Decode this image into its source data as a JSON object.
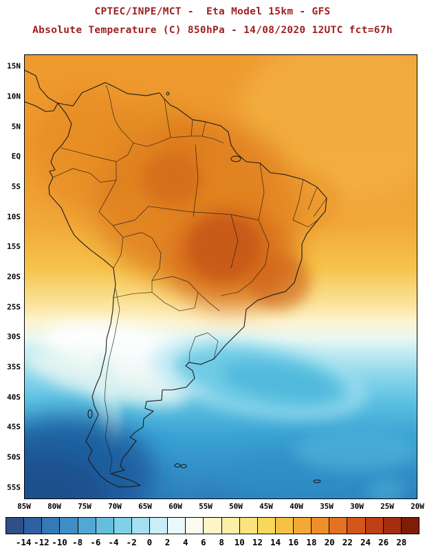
{
  "header": {
    "line1": "CPTEC/INPE/MCT -  Eta Model 15km - GFS",
    "line2": "Absolute Temperature (C) 850hPa - 14/08/2020 12UTC fct=67h",
    "title_color": "#a02020"
  },
  "map": {
    "lat_labels": [
      "15N",
      "10N",
      "5N",
      "EQ",
      "5S",
      "10S",
      "15S",
      "20S",
      "25S",
      "30S",
      "35S",
      "40S",
      "45S",
      "50S",
      "55S"
    ],
    "lon_labels": [
      "85W",
      "80W",
      "75W",
      "70W",
      "65W",
      "60W",
      "55W",
      "50W",
      "45W",
      "40W",
      "35W",
      "30W",
      "25W",
      "20W"
    ]
  },
  "colorbar": {
    "tick_labels": [
      "-14",
      "-12",
      "-10",
      "-8",
      "-6",
      "-4",
      "-2",
      "0",
      "2",
      "4",
      "6",
      "8",
      "10",
      "12",
      "14",
      "16",
      "18",
      "20",
      "22",
      "24",
      "26",
      "28"
    ],
    "colors": [
      "#2f4f85",
      "#2d62a0",
      "#3579b5",
      "#3f8fc5",
      "#51a8d4",
      "#66bede",
      "#82cfe8",
      "#a5dff0",
      "#c9eef7",
      "#e8f8fb",
      "#fbfbef",
      "#fdf4c8",
      "#fceea4",
      "#fbe47e",
      "#f9d75c",
      "#f6c143",
      "#f2a936",
      "#ec8f2c",
      "#e47222",
      "#d4561b",
      "#bf4015",
      "#a52e10",
      "#7e1e08"
    ]
  },
  "chart_data": {
    "type": "heatmap",
    "title": "Absolute Temperature (C) 850hPa",
    "source": "CPTEC/INPE/MCT",
    "model": "Eta Model 15km - GFS",
    "valid": "14/08/2020 12UTC fct=67h",
    "units": "C",
    "lon_range": [
      "85W",
      "20W"
    ],
    "lat_range": [
      "58S",
      "17N"
    ],
    "colorbar_ticks": [
      -14,
      -12,
      -10,
      -8,
      -6,
      -4,
      -2,
      0,
      2,
      4,
      6,
      8,
      10,
      12,
      14,
      16,
      18,
      20,
      22,
      24,
      26,
      28
    ],
    "approx_field_values_C": {
      "central_brazil_maximum": 24,
      "amazon_basin": 20,
      "northern_south_america": 17,
      "northeast_brazil_coast": 15,
      "tropical_atlantic": 16,
      "bolivia_paraguay": 14,
      "uruguay_cold_tongue": 2,
      "central_argentina_white_band": 6,
      "patagonia": 0,
      "south_atlantic_45S": -4,
      "southwest_corner_55S": -10
    }
  }
}
